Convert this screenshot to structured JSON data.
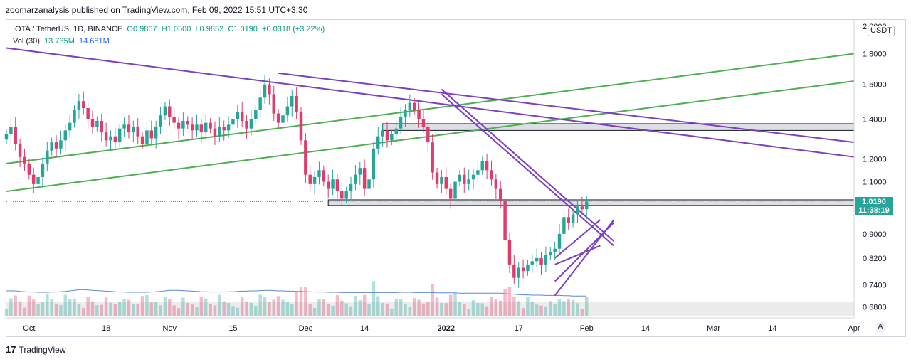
{
  "header": {
    "publisher": "zoomarzanalysis published on TradingView.com, Feb 09, 2022 15:51 UTC+3:30"
  },
  "legend": {
    "symbol": "IOTA / TetherUS, 1D, BINANCE",
    "ohlc_open": "O0.9867",
    "ohlc_high": "H1.0500",
    "ohlc_low": "L0.9852",
    "ohlc_close": "C1.0190",
    "change": "+0.0318 (+3.22%)",
    "volume_label": "Vol (30)",
    "volume_value": "13.735M",
    "volume_ma": "14.681M"
  },
  "currency": "USDT",
  "last_price": {
    "value": "1.0190",
    "countdown": "11:38:19"
  },
  "footer": {
    "logo": "17",
    "brand": "TradingView"
  },
  "auto_scale_label": "A",
  "colors": {
    "up": "#26a69a",
    "down": "#e03b6a",
    "green_line": "#4caf50",
    "purple_line": "#7b3fc4",
    "volume_ma": "#5b8bd6"
  },
  "chart_data": {
    "type": "candlestick",
    "symbol": "IOTA / TetherUS",
    "timeframe": "1D",
    "exchange": "BINANCE",
    "y_scale": "log",
    "ylim": [
      0.655,
      2.05
    ],
    "y_ticks": [
      2.0,
      1.8,
      1.6,
      1.4,
      1.2,
      1.1,
      0.9,
      0.82,
      0.74,
      0.68
    ],
    "y_tick_labels": [
      "2.0000",
      "1.8000",
      "1.6000",
      "1.4000",
      "1.2000",
      "1.1000",
      "0.9000",
      "0.8200",
      "0.7400",
      "0.6800"
    ],
    "x_start": "2021-09-26",
    "x_range": [
      "2021-09-26",
      "2022-04-01"
    ],
    "x_ticks": [
      {
        "date": "2021-10-01",
        "label": "Oct"
      },
      {
        "date": "2021-10-18",
        "label": "18"
      },
      {
        "date": "2021-11-01",
        "label": "Nov"
      },
      {
        "date": "2021-11-15",
        "label": "15"
      },
      {
        "date": "2021-12-01",
        "label": "Dec"
      },
      {
        "date": "2021-12-14",
        "label": "14"
      },
      {
        "date": "2022-01-01",
        "label": "2022"
      },
      {
        "date": "2022-01-17",
        "label": "17"
      },
      {
        "date": "2022-02-01",
        "label": "Feb"
      },
      {
        "date": "2022-02-14",
        "label": "14"
      },
      {
        "date": "2022-03-01",
        "label": "Mar"
      },
      {
        "date": "2022-03-14",
        "label": "14"
      },
      {
        "date": "2022-04-01",
        "label": "Apr"
      }
    ],
    "last_price": 1.019,
    "last_date": "2022-02-09",
    "closes": [
      1.32,
      1.36,
      1.27,
      1.21,
      1.18,
      1.13,
      1.09,
      1.12,
      1.18,
      1.24,
      1.28,
      1.25,
      1.29,
      1.34,
      1.38,
      1.45,
      1.5,
      1.46,
      1.4,
      1.36,
      1.39,
      1.33,
      1.29,
      1.31,
      1.28,
      1.35,
      1.37,
      1.33,
      1.36,
      1.31,
      1.27,
      1.34,
      1.3,
      1.36,
      1.42,
      1.47,
      1.41,
      1.38,
      1.35,
      1.39,
      1.37,
      1.34,
      1.37,
      1.33,
      1.38,
      1.35,
      1.31,
      1.36,
      1.34,
      1.37,
      1.4,
      1.44,
      1.39,
      1.35,
      1.4,
      1.45,
      1.52,
      1.6,
      1.54,
      1.43,
      1.38,
      1.42,
      1.47,
      1.53,
      1.44,
      1.29,
      1.13,
      1.09,
      1.12,
      1.15,
      1.1,
      1.07,
      1.11,
      1.06,
      1.03,
      1.06,
      1.09,
      1.13,
      1.16,
      1.07,
      1.11,
      1.25,
      1.31,
      1.34,
      1.29,
      1.32,
      1.35,
      1.41,
      1.45,
      1.49,
      1.45,
      1.4,
      1.36,
      1.28,
      1.14,
      1.09,
      1.12,
      1.07,
      1.03,
      1.1,
      1.13,
      1.09,
      1.11,
      1.13,
      1.15,
      1.19,
      1.15,
      1.11,
      1.07,
      1.02,
      0.88,
      0.8,
      0.76,
      0.79,
      0.78,
      0.8,
      0.81,
      0.82,
      0.8,
      0.83,
      0.84,
      0.85,
      0.9,
      0.96,
      0.94,
      0.97,
      1.0,
      0.99,
      1.019
    ],
    "volume_ma": [
      0.9,
      0.9,
      0.9,
      0.88,
      0.87,
      0.86,
      0.86,
      0.85,
      0.85,
      0.85,
      0.86,
      0.86,
      0.87,
      0.88,
      0.9,
      0.92,
      0.94,
      0.94,
      0.93,
      0.92,
      0.91,
      0.9,
      0.89,
      0.88,
      0.87,
      0.86,
      0.86,
      0.85,
      0.85,
      0.85,
      0.85,
      0.85,
      0.86,
      0.87,
      0.88,
      0.9,
      0.92,
      0.92,
      0.92,
      0.91,
      0.9,
      0.89,
      0.88,
      0.87,
      0.87,
      0.86,
      0.86,
      0.86,
      0.86,
      0.87,
      0.87,
      0.88,
      0.89,
      0.89,
      0.9,
      0.9,
      0.91,
      0.92,
      0.92,
      0.91,
      0.9,
      0.9,
      0.89,
      0.89,
      0.88,
      0.88,
      0.87,
      0.87,
      0.86,
      0.86,
      0.86,
      0.85,
      0.85,
      0.85,
      0.84,
      0.84,
      0.84,
      0.84,
      0.84,
      0.84,
      0.84,
      0.84,
      0.84,
      0.84,
      0.84,
      0.84,
      0.84,
      0.85,
      0.85,
      0.85,
      0.84,
      0.84,
      0.84,
      0.84,
      0.84,
      0.83,
      0.83,
      0.83,
      0.83,
      0.83,
      0.82,
      0.82,
      0.82,
      0.82,
      0.82,
      0.82,
      0.82,
      0.82,
      0.82,
      0.82,
      0.8,
      0.79,
      0.78,
      0.77,
      0.76,
      0.76,
      0.75,
      0.75,
      0.75,
      0.74,
      0.74,
      0.74,
      0.74,
      0.73,
      0.73,
      0.72,
      0.72,
      0.72,
      0.72
    ],
    "drawings": {
      "green_lines": [
        [
          {
            "date": "2021-09-26",
            "price": 1.06
          },
          {
            "date": "2022-04-01",
            "price": 1.62
          }
        ],
        [
          {
            "date": "2021-09-26",
            "price": 1.18
          },
          {
            "date": "2022-04-01",
            "price": 1.8
          }
        ]
      ],
      "purple_lines": [
        [
          {
            "date": "2021-09-26",
            "price": 1.84
          },
          {
            "date": "2022-04-01",
            "price": 1.21
          }
        ],
        [
          {
            "date": "2021-11-25",
            "price": 1.67
          },
          {
            "date": "2022-04-01",
            "price": 1.28
          }
        ],
        [
          {
            "date": "2021-12-31",
            "price": 1.57
          },
          {
            "date": "2022-02-07",
            "price": 0.875
          }
        ],
        [
          {
            "date": "2021-12-31",
            "price": 1.54
          },
          {
            "date": "2022-02-07",
            "price": 0.86
          }
        ],
        [
          {
            "date": "2022-01-25",
            "price": 0.75
          },
          {
            "date": "2022-02-07",
            "price": 0.94
          }
        ],
        [
          {
            "date": "2022-01-25",
            "price": 0.71
          },
          {
            "date": "2022-02-07",
            "price": 0.95
          }
        ],
        [
          {
            "date": "2022-01-25",
            "price": 0.82
          },
          {
            "date": "2022-02-04",
            "price": 0.95
          }
        ],
        [
          {
            "date": "2022-01-25",
            "price": 0.8
          },
          {
            "date": "2022-02-04",
            "price": 0.86
          }
        ]
      ],
      "zones": [
        {
          "from": "2021-12-18",
          "to": "2022-04-01",
          "top": 1.375,
          "bottom": 1.34
        },
        {
          "from": "2021-12-06",
          "to": "2022-04-01",
          "top": 1.026,
          "bottom": 1.004
        }
      ]
    }
  }
}
